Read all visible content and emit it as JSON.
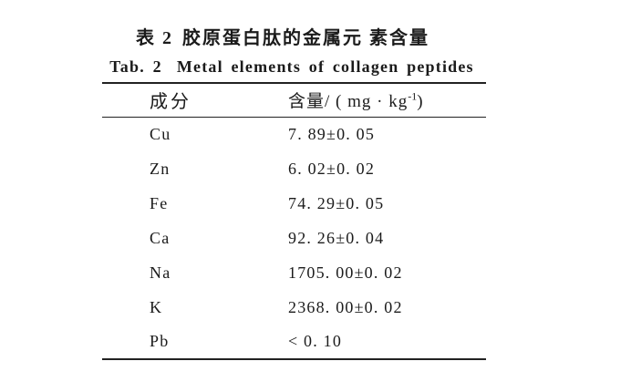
{
  "captions": {
    "zh_label": "表 2",
    "zh_title": "胶原蛋白肽的金属元 素含量",
    "en_label": "Tab. 2",
    "en_title": "Metal elements of collagen peptides"
  },
  "table": {
    "col1_header": "成分",
    "col2_header_main": "含量/ ( mg · kg",
    "col2_header_sup": "-1",
    "col2_header_close": ")",
    "rows": [
      {
        "element": "Cu",
        "content": "7. 89±0. 05"
      },
      {
        "element": "Zn",
        "content": "6. 02±0. 02"
      },
      {
        "element": "Fe",
        "content": "74. 29±0. 05"
      },
      {
        "element": "Ca",
        "content": "92. 26±0. 04"
      },
      {
        "element": "Na",
        "content": "1705. 00±0. 02"
      },
      {
        "element": "K",
        "content": "2368. 00±0. 02"
      },
      {
        "element": "Pb",
        "content": "< 0. 10"
      }
    ]
  }
}
